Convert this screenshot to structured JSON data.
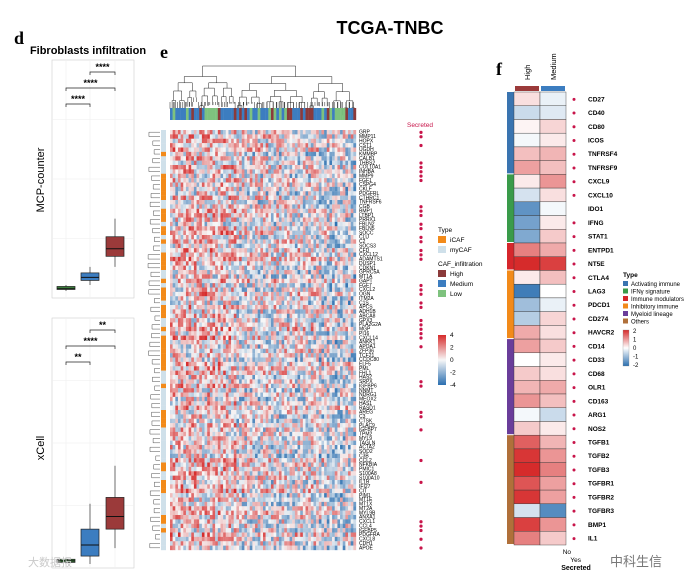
{
  "figure": {
    "title": "TCGA-TNBC",
    "panel_letters": [
      "d",
      "e",
      "f"
    ],
    "watermark_left": "大数据报",
    "watermark_right": "中科生信"
  },
  "chart_data": [
    {
      "panel": "d",
      "type": "box",
      "title": "Fibroblasts infiltration",
      "groups": [
        "Low",
        "Medium",
        "High"
      ],
      "group_colors": [
        "#3a7d3a",
        "#3c7dc0",
        "#9b3a3a"
      ],
      "subplots": [
        {
          "ylabel": "MCP-counter",
          "ylim": [
            0,
            100
          ],
          "boxes": [
            {
              "group": "Low",
              "min": 2,
              "q1": 3,
              "median": 3.5,
              "q3": 5,
              "max": 6
            },
            {
              "group": "Medium",
              "min": 6,
              "q1": 9,
              "median": 11,
              "q3": 14,
              "max": 18
            },
            {
              "group": "High",
              "min": 18,
              "q1": 25,
              "median": 30,
              "q3": 38,
              "max": 50
            }
          ],
          "comparisons": [
            {
              "pair": [
                "Medium",
                "High"
              ],
              "label": "****"
            },
            {
              "pair": [
                "Low",
                "High"
              ],
              "label": "****"
            },
            {
              "pair": [
                "Low",
                "Medium"
              ],
              "label": "****"
            }
          ]
        },
        {
          "ylabel": "xCell",
          "ylim": [
            0,
            100
          ],
          "boxes": [
            {
              "group": "Low",
              "min": 0,
              "q1": 1,
              "median": 2,
              "q3": 3,
              "max": 4
            },
            {
              "group": "Medium",
              "min": 0,
              "q1": 5,
              "median": 12,
              "q3": 22,
              "max": 38
            },
            {
              "group": "High",
              "min": 10,
              "q1": 22,
              "median": 30,
              "q3": 42,
              "max": 62
            }
          ],
          "comparisons": [
            {
              "pair": [
                "Medium",
                "High"
              ],
              "label": "**"
            },
            {
              "pair": [
                "Low",
                "High"
              ],
              "label": "****"
            },
            {
              "pair": [
                "Low",
                "Medium"
              ],
              "label": "**"
            }
          ]
        }
      ]
    },
    {
      "panel": "e",
      "type": "heatmap",
      "secreted_label": "Secreted",
      "genes": [
        "GRP",
        "MMP11",
        "HOPX",
        "CST1",
        "UGDH",
        "KMMBP",
        "CALB1",
        "THBS2",
        "COL10A1",
        "INHBA",
        "MMP9",
        "FGF1",
        "CSPG4",
        "CKLF",
        "PDGFRL",
        "CTHRC1",
        "TNFRSF6",
        "CGB",
        "BMP1",
        "LTBP1",
        "PRRX1",
        "FBLN2",
        "FBLN5",
        "SOCC",
        "CLU",
        "C2",
        "SOCS3",
        "CFD",
        "CXCL12",
        "ADAMTS1",
        "DUSP1",
        "CDKN1",
        "GPRC5A",
        "MT1A",
        "GAPT",
        "FGF7",
        "CXCL2",
        "OGN",
        "ITM2A",
        "C1S",
        "APCS",
        "ADH1B",
        "ABCA8",
        "GPX3",
        "PLA2G2A",
        "MGP",
        "PI16",
        "CXCL14",
        "ANKK1",
        "APOA1",
        "ZFP36",
        "TCF21",
        "CCDC80",
        "ELF5",
        "PML",
        "FHL1",
        "HAS2",
        "SRPX",
        "IGFBP6",
        "NNMT",
        "NDRG1",
        "MEOX2",
        "HAS1",
        "RASD1",
        "AREG",
        "C3",
        "CTSK",
        "PLAC9",
        "IGFBP7",
        "TPM2",
        "MYL9",
        "TAGLN",
        "ACTA2",
        "SOD2",
        "C3B",
        "CCL2",
        "NFKBIA",
        "PMIC1",
        "S100A8",
        "S100A10",
        "IL1B",
        "IFI27",
        "CIT",
        "PIM1",
        "MT1E",
        "MT1X",
        "MT2A",
        "MYL9B",
        "ANXA1",
        "CXCL1",
        "CCL4",
        "IGFBP5",
        "PDGFRA",
        "CXCL8",
        "CDH1",
        "APOE"
      ],
      "secreted_genes": [
        "GRP",
        "MMP11",
        "CST1",
        "THBS2",
        "COL10A1",
        "INHBA",
        "MMP9",
        "FGF1",
        "CGB",
        "BMP1",
        "LTBP1",
        "FBLN2",
        "FBLN5",
        "CLU",
        "C2",
        "CFD",
        "CXCL12",
        "ADAMTS1",
        "FGF7",
        "CXCL2",
        "OGN",
        "C1S",
        "APCS",
        "GPX3",
        "PLA2G2A",
        "MGP",
        "PI16",
        "CXCL14",
        "APOA1",
        "SRPX",
        "IGFBP6",
        "AREG",
        "C3",
        "IGFBP7",
        "CCL2",
        "IL1B",
        "CXCL1",
        "CCL4",
        "IGFBP5",
        "CXCL8",
        "APOE"
      ],
      "color_scale": {
        "min": -4,
        "max": 4,
        "ticks": [
          4,
          2,
          0,
          -2,
          -4
        ],
        "low_color": "#2b6fb0",
        "mid_color": "#f7f7f7",
        "high_color": "#d62b2b"
      },
      "legends": [
        {
          "title": "Type",
          "items": [
            {
              "label": "iCAF",
              "color": "#f28a1a"
            },
            {
              "label": "myCAF",
              "color": "#cfe0ea"
            }
          ]
        },
        {
          "title": "CAF_infiltration",
          "items": [
            {
              "label": "High",
              "color": "#8b3a3a"
            },
            {
              "label": "Medium",
              "color": "#3c7dc0"
            },
            {
              "label": "Low",
              "color": "#7ec27e"
            }
          ]
        }
      ]
    },
    {
      "panel": "f",
      "type": "heatmap",
      "columns": [
        "High",
        "Medium"
      ],
      "column_colors": [
        "#9b3a3a",
        "#3c7dc0"
      ],
      "secreted_axis": [
        "No",
        "Yes"
      ],
      "secreted_label": "Secreted",
      "type_legend": {
        "title": "Type",
        "items": [
          {
            "label": "Activating immune",
            "color": "#3a74b0"
          },
          {
            "label": "IFNγ signature",
            "color": "#3a9b4a"
          },
          {
            "label": "Immune modulators",
            "color": "#d6262b"
          },
          {
            "label": "Inhibitory immune",
            "color": "#f28a1a"
          },
          {
            "label": "Myeloid lineage",
            "color": "#6a3d9a"
          },
          {
            "label": "Others",
            "color": "#b0703a"
          }
        ]
      },
      "color_scale": {
        "min": -2,
        "max": 2,
        "ticks": [
          2,
          1,
          0,
          -1,
          -2
        ]
      },
      "genes": [
        {
          "name": "CD27",
          "type": "Activating immune",
          "values": [
            0.3,
            -0.2
          ],
          "secreted": true
        },
        {
          "name": "CD40",
          "type": "Activating immune",
          "values": [
            -0.5,
            -0.3
          ],
          "secreted": true
        },
        {
          "name": "CD80",
          "type": "Activating immune",
          "values": [
            0.1,
            0.4
          ],
          "secreted": true
        },
        {
          "name": "ICOS",
          "type": "Activating immune",
          "values": [
            -0.1,
            0.2
          ],
          "secreted": true
        },
        {
          "name": "TNFRSF4",
          "type": "Activating immune",
          "values": [
            0.6,
            0.7
          ],
          "secreted": true
        },
        {
          "name": "TNFRSF9",
          "type": "Activating immune",
          "values": [
            0.9,
            0.6
          ],
          "secreted": true
        },
        {
          "name": "CXCL9",
          "type": "IFNγ signature",
          "values": [
            0.2,
            1.0
          ],
          "secreted": true
        },
        {
          "name": "CXCL10",
          "type": "IFNγ signature",
          "values": [
            -0.4,
            0.3
          ],
          "secreted": true
        },
        {
          "name": "IDO1",
          "type": "IFNγ signature",
          "values": [
            -1.5,
            -0.1
          ],
          "secreted": false
        },
        {
          "name": "IFNG",
          "type": "IFNγ signature",
          "values": [
            -1.3,
            0.2
          ],
          "secreted": true
        },
        {
          "name": "STAT1",
          "type": "IFNγ signature",
          "values": [
            -1.2,
            0.5
          ],
          "secreted": true
        },
        {
          "name": "ENTPD1",
          "type": "Immune modulators",
          "values": [
            1.2,
            0.8
          ],
          "secreted": true
        },
        {
          "name": "NT5E",
          "type": "Immune modulators",
          "values": [
            2.0,
            1.8
          ],
          "secreted": true
        },
        {
          "name": "CTLA4",
          "type": "Inhibitory immune",
          "values": [
            0.2,
            0.6
          ],
          "secreted": true
        },
        {
          "name": "LAG3",
          "type": "Inhibitory immune",
          "values": [
            -1.8,
            0.0
          ],
          "secreted": true
        },
        {
          "name": "PDCD1",
          "type": "Inhibitory immune",
          "values": [
            -0.9,
            -0.2
          ],
          "secreted": true
        },
        {
          "name": "CD274",
          "type": "Inhibitory immune",
          "values": [
            -0.7,
            0.4
          ],
          "secreted": true
        },
        {
          "name": "HAVCR2",
          "type": "Inhibitory immune",
          "values": [
            0.8,
            0.3
          ],
          "secreted": true
        },
        {
          "name": "CD14",
          "type": "Myeloid lineage",
          "values": [
            0.9,
            0.5
          ],
          "secreted": true
        },
        {
          "name": "CD33",
          "type": "Myeloid lineage",
          "values": [
            0.0,
            0.2
          ],
          "secreted": true
        },
        {
          "name": "CD68",
          "type": "Myeloid lineage",
          "values": [
            0.5,
            0.3
          ],
          "secreted": true
        },
        {
          "name": "OLR1",
          "type": "Myeloid lineage",
          "values": [
            0.7,
            0.8
          ],
          "secreted": true
        },
        {
          "name": "CD163",
          "type": "Myeloid lineage",
          "values": [
            1.0,
            0.6
          ],
          "secreted": true
        },
        {
          "name": "ARG1",
          "type": "Myeloid lineage",
          "values": [
            -0.1,
            -0.5
          ],
          "secreted": true
        },
        {
          "name": "NOS2",
          "type": "Myeloid lineage",
          "values": [
            0.5,
            0.2
          ],
          "secreted": true
        },
        {
          "name": "TGFB1",
          "type": "Others",
          "values": [
            1.5,
            0.7
          ],
          "secreted": true
        },
        {
          "name": "TGFB2",
          "type": "Others",
          "values": [
            1.9,
            1.0
          ],
          "secreted": true
        },
        {
          "name": "TGFB3",
          "type": "Others",
          "values": [
            2.0,
            1.2
          ],
          "secreted": true
        },
        {
          "name": "TGFBR1",
          "type": "Others",
          "values": [
            1.6,
            0.9
          ],
          "secreted": true
        },
        {
          "name": "TGFBR2",
          "type": "Others",
          "values": [
            1.9,
            0.9
          ],
          "secreted": true
        },
        {
          "name": "TGFBR3",
          "type": "Others",
          "values": [
            -0.4,
            -1.6
          ],
          "secreted": true
        },
        {
          "name": "BMP1",
          "type": "Others",
          "values": [
            1.8,
            1.0
          ],
          "secreted": true
        },
        {
          "name": "IL1",
          "type": "Others",
          "values": [
            1.2,
            0.5
          ],
          "secreted": true
        }
      ]
    }
  ]
}
